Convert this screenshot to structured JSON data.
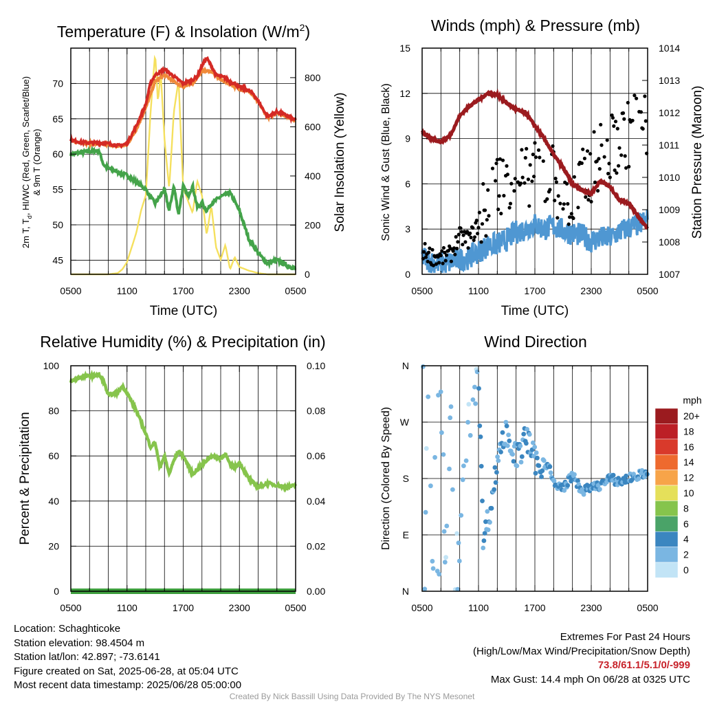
{
  "panels": {
    "temperature": {
      "title": "Temperature (F) & Insolation (W/m",
      "title_sup": "2",
      "title_end": ")",
      "ylabel_left_line1": "2m T, T",
      "ylabel_left_sub": "d",
      "ylabel_left_line1_end": ", HI/WC (Red, Green, Scarlet/Blue)",
      "ylabel_left_line2": "& 9m T (Orange)",
      "ylabel_right": "Solar Insolation (Yellow)",
      "xlabel": "Time (UTC)"
    },
    "winds": {
      "title": "Winds (mph) & Pressure (mb)",
      "ylabel_left": "Sonic Wind & Gust (Blue, Black)",
      "ylabel_right": "Station Pressure (Maroon)",
      "xlabel": "Time (UTC)"
    },
    "humidity": {
      "title": "Relative Humidity (%) & Precipitation (in)",
      "ylabel_left": "Percent & Precipitation"
    },
    "direction": {
      "title": "Wind Direction",
      "ylabel_left": "Direction (Colored By Speed)",
      "colorbar_title": "mph",
      "colorbar_labels": [
        "20+",
        "18",
        "16",
        "14",
        "12",
        "10",
        "8",
        "6",
        "4",
        "2",
        "0"
      ],
      "colorbar_colors": [
        "#9b1b1f",
        "#bc1f26",
        "#d93a2b",
        "#ee6a2e",
        "#f7a449",
        "#e5e05a",
        "#86c44c",
        "#4aa368",
        "#3b86c0",
        "#7ab6e2",
        "#c2e4f6"
      ]
    }
  },
  "colors": {
    "temp": "#d42a25",
    "heat_index": "#c8232b",
    "temp_9m": "#f08a3a",
    "dewpoint": "#44a34a",
    "insolation": "#f5e05e",
    "gust": "#000000",
    "sonic_wind": "#4f97d2",
    "pressure": "#9b1b1f",
    "humidity": "#86c44c",
    "precip": "#3e9e3e"
  },
  "chart_data": [
    {
      "type": "line",
      "title": "Temperature (F) & Insolation (W/m2)",
      "xlabel": "Time (UTC)",
      "ylabel": "2m T, Td, HI/WC (Red, Green, Scarlet/Blue) & 9m T (Orange)",
      "y2label": "Solar Insolation (Yellow)",
      "x_ticks": [
        "0500",
        "1100",
        "1700",
        "2300",
        "0500"
      ],
      "x_range_hours": [
        0,
        24
      ],
      "ylim": [
        43,
        75
      ],
      "y_ticks": [
        45,
        50,
        55,
        60,
        65,
        70
      ],
      "y2lim": [
        0,
        920
      ],
      "y2_ticks": [
        0,
        200,
        400,
        600,
        800
      ],
      "grid": true,
      "series": [
        {
          "name": "2m T",
          "axis": "left",
          "x": [
            0,
            1,
            2,
            3,
            4,
            5,
            5.5,
            6,
            7,
            8,
            8.5,
            9,
            10,
            11,
            12,
            13,
            13.5,
            14,
            14.5,
            15,
            15.5,
            16,
            16.5,
            17,
            17.5,
            18,
            18.5,
            19,
            19.5,
            20,
            21,
            22,
            23,
            24
          ],
          "y": [
            62,
            61.7,
            61.6,
            61.6,
            61.5,
            61.2,
            61.3,
            61.5,
            64,
            67,
            70,
            71.2,
            72,
            71,
            70,
            70.5,
            71,
            72.5,
            73.6,
            72.5,
            71.2,
            71,
            70.8,
            70.2,
            70,
            69.5,
            69.3,
            69,
            68.5,
            67.5,
            65.3,
            66,
            65.5,
            64.8
          ]
        },
        {
          "name": "9m T",
          "axis": "left",
          "x": [
            0,
            2,
            4,
            5,
            6,
            7,
            8,
            9,
            10,
            11,
            12,
            13,
            14,
            15,
            16,
            17,
            18,
            19,
            20,
            21,
            22,
            23,
            24
          ],
          "y": [
            61.8,
            61.5,
            61.4,
            61.1,
            61.3,
            63.5,
            66.5,
            70.3,
            71.2,
            70.3,
            69.5,
            70,
            71.8,
            71.7,
            70.5,
            70,
            69.2,
            68.9,
            67.4,
            65.2,
            65.9,
            65.4,
            64.7
          ]
        },
        {
          "name": "Td",
          "axis": "left",
          "x": [
            0,
            1,
            2,
            3,
            3.5,
            4,
            5,
            6,
            7,
            8,
            9,
            10,
            10.5,
            11,
            11.5,
            12,
            12.5,
            13,
            13.5,
            14,
            14.5,
            15,
            16,
            17,
            18,
            19,
            20,
            21,
            22,
            23,
            24
          ],
          "y": [
            60,
            60.2,
            60.4,
            60.5,
            58.5,
            58,
            57.5,
            57,
            56,
            55,
            53,
            55,
            52,
            55.5,
            51.5,
            55.5,
            54,
            55.5,
            52.5,
            53,
            52,
            53,
            54,
            54.5,
            52,
            48,
            46,
            44.5,
            45,
            44.3,
            43.8
          ]
        },
        {
          "name": "Solar Insolation",
          "axis": "right",
          "x": [
            0,
            1,
            2,
            3,
            4,
            5,
            5.5,
            6,
            6.5,
            7,
            7.5,
            8,
            8.5,
            9,
            9.3,
            9.6,
            10,
            10.5,
            11,
            11.5,
            12,
            12.5,
            13,
            13.5,
            14,
            14.5,
            15,
            15.5,
            16,
            16.5,
            17,
            17.5,
            18,
            19,
            20,
            21,
            22,
            23,
            24
          ],
          "y": [
            0,
            0,
            0,
            0,
            0,
            5,
            20,
            50,
            110,
            170,
            260,
            320,
            650,
            900,
            700,
            820,
            550,
            350,
            660,
            790,
            350,
            300,
            250,
            380,
            320,
            160,
            280,
            110,
            60,
            120,
            20,
            70,
            30,
            15,
            5,
            0,
            0,
            0,
            0
          ]
        }
      ]
    },
    {
      "type": "line",
      "title": "Winds (mph) & Pressure (mb)",
      "xlabel": "Time (UTC)",
      "ylabel": "Sonic Wind & Gust (Blue, Black)",
      "y2label": "Station Pressure (Maroon)",
      "x_ticks": [
        "0500",
        "1100",
        "1700",
        "2300",
        "0500"
      ],
      "ylim": [
        0,
        15
      ],
      "y_ticks": [
        0,
        3,
        6,
        9,
        12,
        15
      ],
      "y2lim": [
        1007,
        1014
      ],
      "y2_ticks": [
        1007,
        1008,
        1009,
        1010,
        1011,
        1012,
        1013,
        1014
      ],
      "grid": true,
      "series": [
        {
          "name": "Sonic Wind",
          "axis": "left",
          "x": [
            0,
            1,
            2,
            3,
            4,
            5,
            6,
            7,
            8,
            9,
            10,
            11,
            12,
            13,
            14,
            15,
            16,
            17,
            18,
            19,
            20,
            21,
            22,
            23,
            24
          ],
          "y": [
            1.2,
            0.8,
            0.7,
            0.8,
            1,
            1.1,
            1.5,
            1.9,
            2,
            2.3,
            2.8,
            3,
            3.3,
            3,
            3.2,
            2.9,
            2.7,
            2.6,
            2.2,
            2.4,
            2.4,
            2.8,
            3.1,
            3.3,
            3.6
          ]
        },
        {
          "name": "Gust",
          "axis": "left",
          "x": [
            0,
            1,
            2,
            3,
            4,
            5,
            6,
            7,
            8,
            9,
            10,
            11,
            12,
            13,
            14,
            15,
            16,
            17,
            18,
            19,
            20,
            21,
            22,
            23,
            24
          ],
          "y": [
            1.6,
            1.2,
            1.1,
            1.3,
            2.5,
            2.3,
            3.3,
            4.5,
            6,
            6.7,
            6.5,
            6.2,
            7.5,
            6.4,
            6.6,
            5,
            4.5,
            6,
            7,
            8,
            8.3,
            9,
            9.3,
            10.5,
            9.5
          ]
        },
        {
          "name": "Station Pressure",
          "axis": "right",
          "x": [
            0,
            1,
            2,
            3,
            4,
            5,
            6,
            7,
            8,
            9,
            10,
            11,
            12,
            13,
            14,
            15,
            16,
            17,
            18,
            19,
            20,
            21,
            22,
            23,
            24
          ],
          "y": [
            1011.4,
            1011.2,
            1011.1,
            1011.3,
            1011.9,
            1012.2,
            1012.4,
            1012.6,
            1012.55,
            1012.3,
            1012.1,
            1012.0,
            1011.6,
            1011.2,
            1010.7,
            1010.3,
            1009.8,
            1009.6,
            1009.5,
            1009.9,
            1009.7,
            1009.3,
            1009.2,
            1008.8,
            1008.4
          ]
        }
      ]
    },
    {
      "type": "line",
      "title": "Relative Humidity (%) & Precipitation (in)",
      "xlabel": "",
      "ylabel": "Percent & Precipitation",
      "x_ticks": [
        "0500",
        "1100",
        "1700",
        "2300",
        "0500"
      ],
      "ylim": [
        0,
        100
      ],
      "y_ticks": [
        0,
        20,
        40,
        60,
        80,
        100
      ],
      "y2lim": [
        0,
        0.1
      ],
      "y2_ticks": [
        "0.00",
        "0.02",
        "0.04",
        "0.06",
        "0.08",
        "0.10"
      ],
      "grid": true,
      "series": [
        {
          "name": "Relative Humidity",
          "axis": "left",
          "x": [
            0,
            1,
            2,
            3,
            3.5,
            4,
            5,
            5.5,
            6,
            7,
            8,
            8.5,
            9,
            9.5,
            10,
            10.5,
            11,
            11.5,
            12,
            12.5,
            13,
            14,
            15,
            16,
            16.5,
            17,
            17.5,
            18,
            19,
            20,
            21,
            22,
            23,
            24
          ],
          "y": [
            93,
            95,
            95.5,
            96,
            93,
            87,
            88,
            91,
            88,
            80,
            70,
            64,
            66,
            55,
            60,
            52,
            58,
            62,
            60,
            56,
            52,
            56,
            60,
            59,
            61,
            56,
            55,
            57,
            50,
            46,
            48,
            47,
            46,
            47
          ]
        },
        {
          "name": "Precipitation",
          "axis": "right",
          "x": [
            0,
            24
          ],
          "y": [
            0,
            0
          ]
        }
      ]
    },
    {
      "type": "scatter",
      "title": "Wind Direction",
      "xlabel": "",
      "ylabel": "Direction (Colored By Speed)",
      "x_ticks": [
        "0500",
        "1100",
        "1700",
        "2300",
        "0500"
      ],
      "y_ticks": [
        "N",
        "E",
        "S",
        "W",
        "N"
      ],
      "ylim_degrees": [
        0,
        360
      ],
      "colorbar_label": "mph",
      "grid": true,
      "series": [
        {
          "name": "Wind Direction",
          "x": [
            0.3,
            0.5,
            0.8,
            1,
            1.2,
            1.5,
            2.0,
            2.5,
            3.0,
            3.5,
            4.0,
            5.5,
            6.0,
            6.5,
            7.5,
            8.0,
            8.5,
            9.0,
            9.5,
            10.0,
            10.5,
            11.0,
            11.5,
            12.0,
            12.5,
            13.0,
            13.5,
            14.0,
            15.0,
            16.0,
            17.0,
            18.0,
            19.0,
            20.0,
            21.0,
            22.0,
            23.0,
            24.0
          ],
          "y": [
            15,
            340,
            300,
            20,
            60,
            330,
            350,
            40,
            310,
            20,
            75,
            355,
            355,
            80,
            150,
            210,
            240,
            255,
            230,
            215,
            220,
            250,
            230,
            210,
            195,
            205,
            200,
            170,
            165,
            185,
            160,
            165,
            170,
            180,
            175,
            180,
            185,
            190
          ]
        }
      ]
    }
  ],
  "footer": {
    "location": "Location: Schaghticoke",
    "elevation": "Station elevation: 98.4504 m",
    "latlon": "Station lat/lon: 42.897; -73.6141",
    "created": "Figure created on Sat, 2025-06-28, at 05:04 UTC",
    "recent": "Most recent data timestamp: 2025/06/28 05:00:00",
    "extremes_title": "Extremes For Past 24 Hours",
    "extremes_legend": "(High/Low/Max Wind/Precipitation/Snow Depth)",
    "extremes_values": "73.8/61.1/5.1/0/-999",
    "max_gust": "Max Gust: 14.4 mph On 06/28 at 0325 UTC",
    "credit": "Created By Nick Bassill Using Data Provided By The NYS Mesonet"
  }
}
